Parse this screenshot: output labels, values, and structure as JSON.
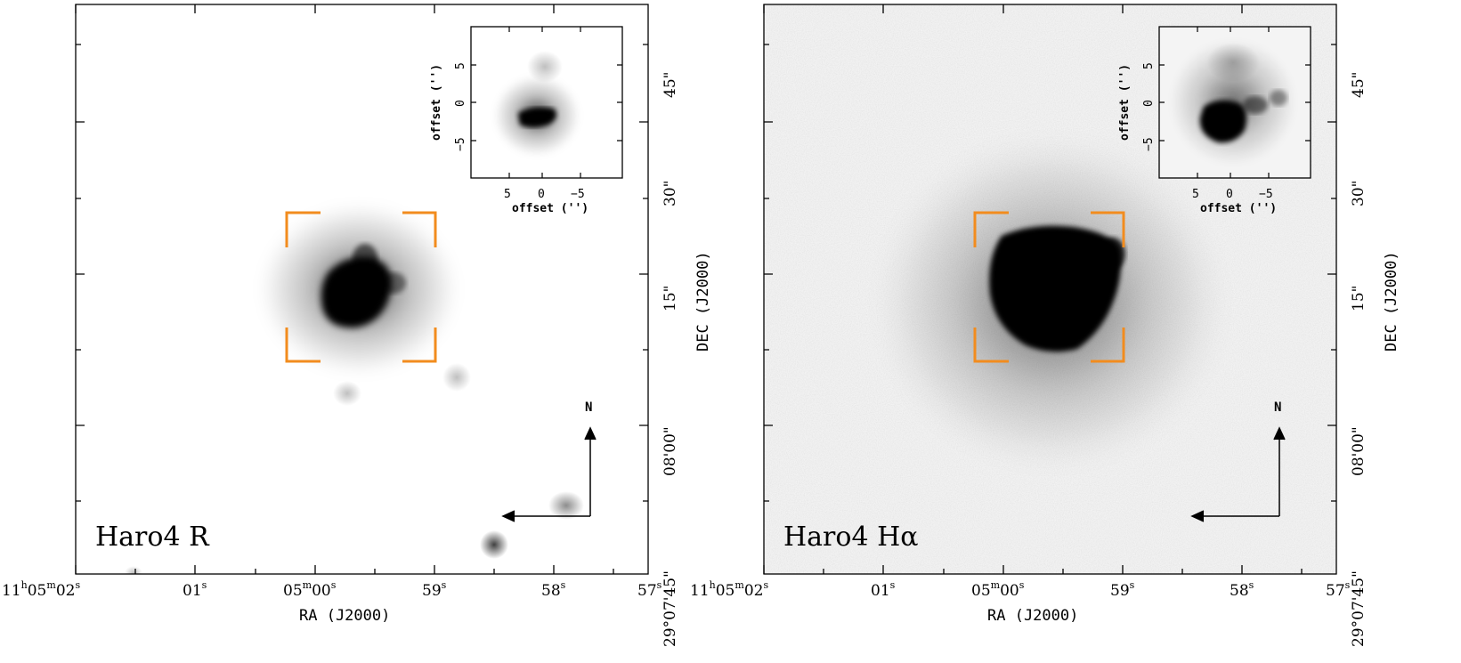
{
  "panels": [
    {
      "id": "left",
      "name_label": "Haro4  R",
      "bracket_color": "#f28c1e",
      "ra_labels": [
        "11h05m02s",
        "01s",
        "05m00s",
        "59s",
        "58s",
        "57s"
      ],
      "dec_labels": [
        "29°07'45\"",
        "08'00\"",
        "15\"",
        "30\"",
        "45\""
      ],
      "x_axis_label": "RA (J2000)",
      "y_axis_label": "DEC (J2000)",
      "compass_label": "N",
      "inset": {
        "x_ticks": [
          "5",
          "0",
          "−5"
        ],
        "y_ticks": [
          "5",
          "0",
          "−5"
        ],
        "x_label": "offset ('')",
        "y_label": "offset ('')"
      }
    },
    {
      "id": "right",
      "name_label": "Haro4  Hα",
      "bracket_color": "#f28c1e",
      "ra_labels": [
        "11h05m02s",
        "01s",
        "05m00s",
        "59s",
        "58s",
        "57s"
      ],
      "dec_labels": [
        "29°07'45\"",
        "08'00\"",
        "15\"",
        "30\"",
        "45\""
      ],
      "x_axis_label": "RA (J2000)",
      "y_axis_label": "DEC (J2000)",
      "compass_label": "N",
      "inset": {
        "x_ticks": [
          "5",
          "0",
          "−5"
        ],
        "y_ticks": [
          "5",
          "0",
          "−5"
        ],
        "x_label": "offset ('')",
        "y_label": "offset ('')"
      }
    }
  ]
}
